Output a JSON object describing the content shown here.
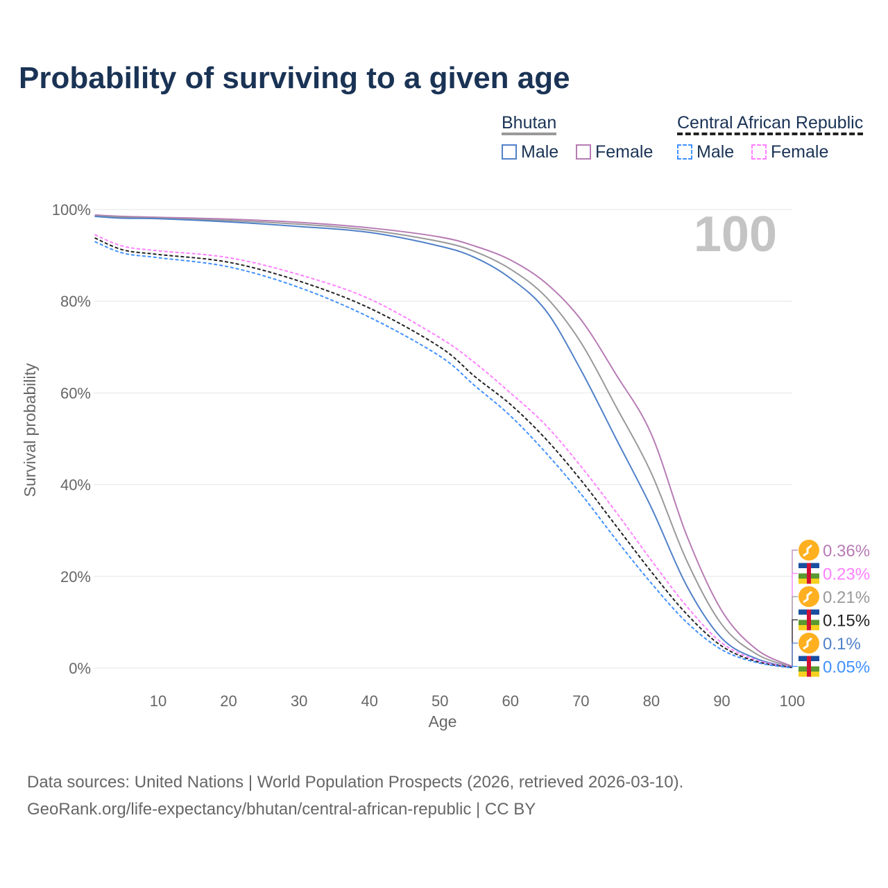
{
  "title": "Probability of surviving to a given age",
  "legend": {
    "groups": [
      {
        "name": "Bhutan",
        "items": [
          "Male",
          "Female"
        ]
      },
      {
        "name": "Central African Republic",
        "items": [
          "Male",
          "Female"
        ]
      }
    ]
  },
  "age_marker": "100",
  "source": [
    "Data sources: United Nations | World Population Prospects (2026, retrieved 2026-03-10).",
    "GeoRank.org/life-expectancy/bhutan/central-african-republic | CC BY"
  ],
  "chart_data": {
    "type": "line",
    "xlabel": "Age",
    "ylabel": "Survival probability",
    "xlim": [
      1,
      100
    ],
    "ylim": [
      0,
      100
    ],
    "xticks": [
      10,
      20,
      30,
      40,
      50,
      60,
      70,
      80,
      90,
      100
    ],
    "yticks": [
      "0%",
      "20%",
      "40%",
      "60%",
      "80%",
      "100%"
    ],
    "x": [
      1,
      5,
      10,
      20,
      30,
      40,
      50,
      55,
      60,
      65,
      70,
      75,
      80,
      85,
      90,
      95,
      100
    ],
    "series": [
      {
        "name": "Bhutan Female",
        "color": "#b77bb4",
        "dash": false,
        "end_label": "0.36%",
        "values": [
          98.8,
          98.5,
          98.3,
          97.9,
          97.2,
          96,
          94,
          92,
          89,
          84,
          76,
          64,
          51,
          29,
          12.5,
          4,
          0.36
        ]
      },
      {
        "name": "Bhutan",
        "color": "#999999",
        "dash": false,
        "end_label": "0.21%",
        "values": [
          98.6,
          98.3,
          98.1,
          97.6,
          96.8,
          95.5,
          93,
          90.8,
          87,
          81,
          71,
          57,
          42.5,
          23.5,
          9.5,
          3,
          0.21
        ]
      },
      {
        "name": "Bhutan Male",
        "color": "#5080c8",
        "dash": false,
        "end_label": "0.1%",
        "values": [
          98.5,
          98.1,
          98,
          97.3,
          96.3,
          95,
          92,
          89.5,
          85,
          78,
          65,
          50,
          35,
          18,
          6.5,
          2,
          0.1
        ]
      },
      {
        "name": "Central African Republic Female",
        "color": "#ff80ff",
        "dash": true,
        "end_label": "0.23%",
        "values": [
          94.5,
          92,
          91,
          89.5,
          85.8,
          80.5,
          72,
          66.5,
          60,
          53,
          44,
          34,
          23.5,
          13.5,
          5.5,
          1.7,
          0.23
        ]
      },
      {
        "name": "Central African Republic",
        "color": "#222222",
        "dash": true,
        "end_label": "0.15%",
        "values": [
          93.8,
          91.2,
          90.2,
          88.5,
          84.4,
          78.5,
          70,
          63.5,
          57.5,
          50,
          41,
          31,
          21,
          11.8,
          4.8,
          1.4,
          0.15
        ]
      },
      {
        "name": "Central African Republic Male",
        "color": "#4090ff",
        "dash": true,
        "end_label": "0.05%",
        "values": [
          93,
          90.5,
          89.5,
          87.5,
          83,
          76.5,
          68,
          61.5,
          55,
          47,
          38,
          28,
          18.5,
          10,
          4,
          1.2,
          0.05
        ]
      }
    ]
  }
}
